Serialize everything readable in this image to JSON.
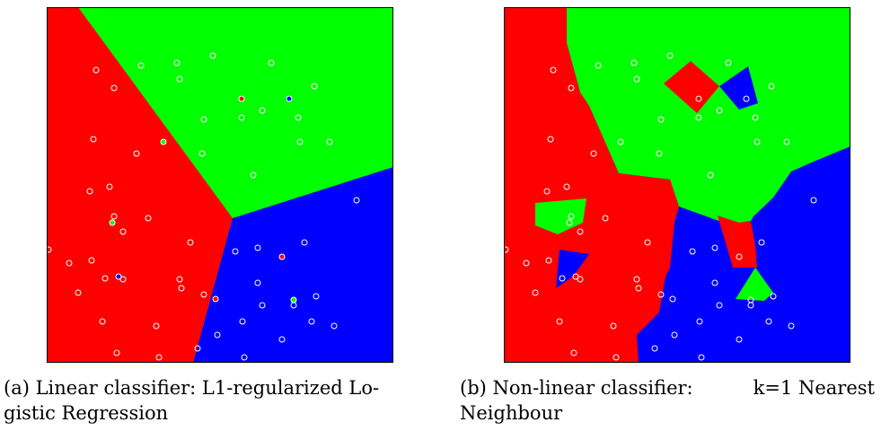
{
  "panels": [
    {
      "id": "a",
      "caption_label": "(a)",
      "caption_line1": "Linear classifier:  L1-regularized Lo-",
      "caption_line2": "gistic Regression"
    },
    {
      "id": "b",
      "caption_label": "(b)",
      "caption_line1_left": "Non-linear classifier:",
      "caption_line1_right": "k=1 Nearest",
      "caption_line2": "Neighbour"
    }
  ],
  "colors": {
    "red": "#ff0000",
    "green": "#00ff00",
    "blue": "#0000ff",
    "point_outline": "#ffffff"
  }
}
